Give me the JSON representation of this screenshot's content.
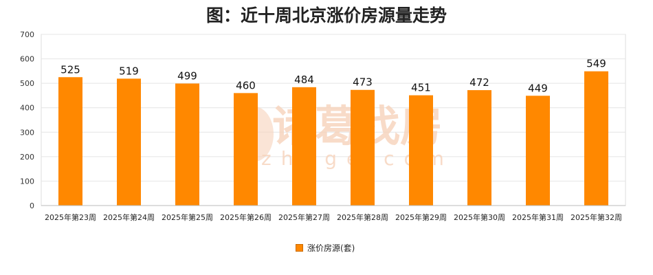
{
  "chart_data": {
    "type": "bar",
    "title": "图：近十周北京涨价房源量走势",
    "categories": [
      "2025年第23周",
      "2025年第24周",
      "2025年第25周",
      "2025年第26周",
      "2025年第27周",
      "2025年第28周",
      "2025年第29周",
      "2025年第30周",
      "2025年第31周",
      "2025年第32周"
    ],
    "series": [
      {
        "name": "涨价房源(套)",
        "values": [
          525,
          519,
          499,
          460,
          484,
          473,
          451,
          472,
          449,
          549
        ],
        "color": "#ff8800"
      }
    ],
    "ylim": [
      0,
      700
    ],
    "yticks": [
      0,
      100,
      200,
      300,
      400,
      500,
      600,
      700
    ],
    "grid": true,
    "legend_position": "bottom",
    "data_labels": true
  },
  "watermark": {
    "text": "诸葛找房",
    "subtext": "zhuge.com"
  }
}
